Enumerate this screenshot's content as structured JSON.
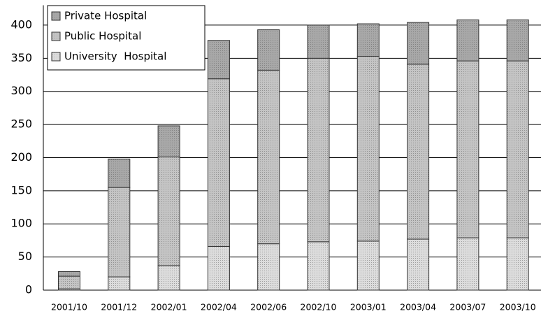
{
  "chart_data": {
    "type": "stacked_bar",
    "categories": [
      "2001/10",
      "2001/12",
      "2002/01",
      "2002/04",
      "2002/06",
      "2002/10",
      "2003/01",
      "2003/04",
      "2003/07",
      "2003/10"
    ],
    "series": [
      {
        "name": "University  Hospital",
        "color": "#dcdcdc",
        "values": [
          2,
          20,
          37,
          66,
          70,
          73,
          74,
          77,
          79,
          79
        ]
      },
      {
        "name": "Public Hospital",
        "color": "#c4c4c4",
        "values": [
          19,
          135,
          164,
          253,
          262,
          277,
          279,
          264,
          267,
          267
        ]
      },
      {
        "name": "Private Hospital",
        "color": "#a8a8a8",
        "values": [
          7,
          43,
          47,
          58,
          61,
          50,
          49,
          63,
          62,
          62
        ]
      }
    ],
    "ylim": [
      0,
      430
    ],
    "yticks": [
      0,
      50,
      100,
      150,
      200,
      250,
      300,
      350,
      400
    ],
    "grid": true
  }
}
